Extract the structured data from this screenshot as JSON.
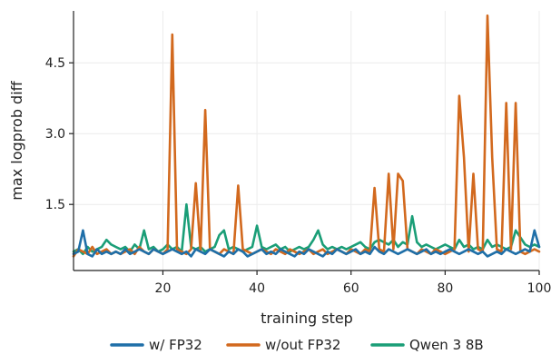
{
  "chart_data": {
    "type": "line",
    "xlabel": "training step",
    "ylabel": "max logprob diff",
    "xlim": [
      1,
      100
    ],
    "ylim": [
      0.1,
      5.6
    ],
    "x_ticks": [
      20,
      40,
      60,
      80,
      100
    ],
    "y_ticks": [
      1.5,
      3.0,
      4.5
    ],
    "x_tick_labels": [
      "20",
      "40",
      "60",
      "80",
      "100"
    ],
    "y_tick_labels": [
      "1.5",
      "3.0",
      "4.5"
    ],
    "grid": true,
    "legend_position": "bottom",
    "series": [
      {
        "name": "w/ FP32",
        "color": "#1f6fa8",
        "x": [
          1,
          2,
          3,
          4,
          5,
          6,
          7,
          8,
          9,
          10,
          11,
          12,
          13,
          14,
          15,
          16,
          17,
          18,
          19,
          20,
          21,
          22,
          23,
          24,
          25,
          26,
          27,
          28,
          29,
          30,
          31,
          32,
          33,
          34,
          35,
          36,
          37,
          38,
          39,
          40,
          41,
          42,
          43,
          44,
          45,
          46,
          47,
          48,
          49,
          50,
          51,
          52,
          53,
          54,
          55,
          56,
          57,
          58,
          59,
          60,
          61,
          62,
          63,
          64,
          65,
          66,
          67,
          68,
          69,
          70,
          71,
          72,
          73,
          74,
          75,
          76,
          77,
          78,
          79,
          80,
          81,
          82,
          83,
          84,
          85,
          86,
          87,
          88,
          89,
          90,
          91,
          92,
          93,
          94,
          95,
          96,
          97,
          98,
          99,
          100
        ],
        "y": [
          0.45,
          0.5,
          0.95,
          0.45,
          0.4,
          0.55,
          0.45,
          0.5,
          0.45,
          0.5,
          0.45,
          0.55,
          0.45,
          0.5,
          0.55,
          0.5,
          0.45,
          0.55,
          0.5,
          0.45,
          0.5,
          0.55,
          0.5,
          0.45,
          0.5,
          0.4,
          0.55,
          0.5,
          0.45,
          0.55,
          0.5,
          0.45,
          0.4,
          0.5,
          0.45,
          0.55,
          0.5,
          0.4,
          0.45,
          0.5,
          0.55,
          0.45,
          0.5,
          0.45,
          0.55,
          0.5,
          0.45,
          0.4,
          0.5,
          0.45,
          0.55,
          0.5,
          0.45,
          0.4,
          0.5,
          0.45,
          0.55,
          0.5,
          0.45,
          0.5,
          0.55,
          0.45,
          0.5,
          0.45,
          0.6,
          0.5,
          0.45,
          0.55,
          0.5,
          0.45,
          0.5,
          0.55,
          0.5,
          0.45,
          0.5,
          0.55,
          0.45,
          0.5,
          0.45,
          0.5,
          0.55,
          0.5,
          0.45,
          0.5,
          0.55,
          0.5,
          0.45,
          0.5,
          0.4,
          0.45,
          0.5,
          0.45,
          0.55,
          0.5,
          0.45,
          0.5,
          0.55,
          0.5,
          0.95,
          0.6
        ]
      },
      {
        "name": "w/out FP32",
        "color": "#d2691e",
        "x": [
          1,
          2,
          3,
          4,
          5,
          6,
          7,
          8,
          9,
          10,
          11,
          12,
          13,
          14,
          15,
          16,
          17,
          18,
          19,
          20,
          21,
          22,
          23,
          24,
          25,
          26,
          27,
          28,
          29,
          30,
          31,
          32,
          33,
          34,
          35,
          36,
          37,
          38,
          39,
          40,
          41,
          42,
          43,
          44,
          45,
          46,
          47,
          48,
          49,
          50,
          51,
          52,
          53,
          54,
          55,
          56,
          57,
          58,
          59,
          60,
          61,
          62,
          63,
          64,
          65,
          66,
          67,
          68,
          69,
          70,
          71,
          72,
          73,
          74,
          75,
          76,
          77,
          78,
          79,
          80,
          81,
          82,
          83,
          84,
          85,
          86,
          87,
          88,
          89,
          90,
          91,
          92,
          93,
          94,
          95,
          96,
          97,
          98,
          99,
          100
        ],
        "y": [
          0.4,
          0.55,
          0.5,
          0.45,
          0.6,
          0.45,
          0.5,
          0.55,
          0.45,
          0.5,
          0.45,
          0.5,
          0.55,
          0.45,
          0.6,
          0.5,
          0.45,
          0.55,
          0.5,
          0.45,
          0.55,
          5.1,
          0.55,
          0.5,
          0.45,
          0.55,
          1.95,
          0.5,
          3.5,
          0.55,
          0.5,
          0.45,
          0.55,
          0.5,
          0.45,
          1.9,
          0.55,
          0.5,
          0.45,
          0.5,
          0.55,
          0.5,
          0.45,
          0.55,
          0.5,
          0.45,
          0.55,
          0.5,
          0.45,
          0.5,
          0.55,
          0.45,
          0.5,
          0.55,
          0.45,
          0.5,
          0.55,
          0.5,
          0.45,
          0.55,
          0.5,
          0.45,
          0.55,
          0.5,
          1.85,
          0.55,
          0.5,
          2.15,
          0.55,
          2.15,
          2.0,
          0.55,
          0.5,
          0.45,
          0.55,
          0.5,
          0.45,
          0.55,
          0.5,
          0.45,
          0.5,
          0.55,
          3.8,
          2.5,
          0.5,
          2.15,
          0.55,
          0.5,
          5.5,
          2.5,
          0.55,
          0.5,
          3.65,
          0.55,
          3.65,
          0.5,
          0.45,
          0.5,
          0.55,
          0.5
        ]
      },
      {
        "name": "Qwen 3 8B",
        "color": "#1a9e77",
        "x": [
          1,
          2,
          3,
          4,
          5,
          6,
          7,
          8,
          9,
          10,
          11,
          12,
          13,
          14,
          15,
          16,
          17,
          18,
          19,
          20,
          21,
          22,
          23,
          24,
          25,
          26,
          27,
          28,
          29,
          30,
          31,
          32,
          33,
          34,
          35,
          36,
          37,
          38,
          39,
          40,
          41,
          42,
          43,
          44,
          45,
          46,
          47,
          48,
          49,
          50,
          51,
          52,
          53,
          54,
          55,
          56,
          57,
          58,
          59,
          60,
          61,
          62,
          63,
          64,
          65,
          66,
          67,
          68,
          69,
          70,
          71,
          72,
          73,
          74,
          75,
          76,
          77,
          78,
          79,
          80,
          81,
          82,
          83,
          84,
          85,
          86,
          87,
          88,
          89,
          90,
          91,
          92,
          93,
          94,
          95,
          96,
          97,
          98,
          99,
          100
        ],
        "y": [
          0.5,
          0.55,
          0.45,
          0.6,
          0.5,
          0.55,
          0.6,
          0.75,
          0.65,
          0.6,
          0.55,
          0.6,
          0.5,
          0.65,
          0.55,
          0.95,
          0.55,
          0.6,
          0.5,
          0.55,
          0.65,
          0.55,
          0.6,
          0.5,
          1.5,
          0.6,
          0.55,
          0.6,
          0.5,
          0.55,
          0.6,
          0.85,
          0.95,
          0.55,
          0.6,
          0.55,
          0.5,
          0.55,
          0.6,
          1.05,
          0.6,
          0.55,
          0.6,
          0.65,
          0.55,
          0.6,
          0.5,
          0.55,
          0.6,
          0.55,
          0.6,
          0.75,
          0.95,
          0.65,
          0.55,
          0.6,
          0.55,
          0.6,
          0.55,
          0.6,
          0.65,
          0.7,
          0.6,
          0.55,
          0.7,
          0.75,
          0.7,
          0.65,
          0.75,
          0.6,
          0.7,
          0.65,
          1.25,
          0.7,
          0.6,
          0.65,
          0.6,
          0.55,
          0.6,
          0.65,
          0.6,
          0.55,
          0.75,
          0.6,
          0.65,
          0.55,
          0.6,
          0.55,
          0.75,
          0.6,
          0.65,
          0.6,
          0.55,
          0.6,
          0.95,
          0.8,
          0.65,
          0.6,
          0.65,
          0.6
        ]
      }
    ]
  }
}
